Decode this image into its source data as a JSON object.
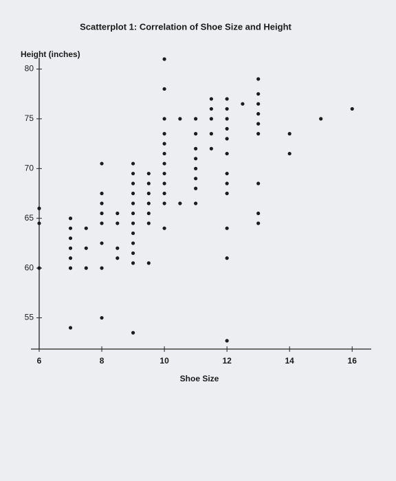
{
  "chart_data": {
    "type": "scatter",
    "title": "Scatterplot 1: Correlation of Shoe Size and Height",
    "y_label": "Height (inches)",
    "x_label": "Shoe Size",
    "color": "#1c1c1c",
    "xlim": [
      6,
      16.5
    ],
    "xticks": [
      6,
      8,
      10,
      12,
      14,
      16
    ],
    "ylim": [
      52,
      81
    ],
    "yticks": [
      55,
      60,
      65,
      70,
      75,
      80
    ],
    "x": [
      6,
      6,
      6,
      7,
      7,
      7,
      7,
      7,
      7,
      7,
      7.5,
      7.5,
      7.5,
      8,
      8,
      8,
      8,
      8,
      8,
      8,
      8,
      8.5,
      8.5,
      8.5,
      8.5,
      9,
      9,
      9,
      9,
      9,
      9,
      9,
      9,
      9,
      9,
      9,
      9,
      9.5,
      9.5,
      9.5,
      9.5,
      9.5,
      9.5,
      9.5,
      10,
      10,
      10,
      10,
      10,
      10,
      10,
      10,
      10,
      10,
      10,
      10,
      10.5,
      10.5,
      11,
      11,
      11,
      11,
      11,
      11,
      11,
      11,
      11.5,
      11.5,
      11.5,
      11.5,
      11.5,
      12,
      12,
      12,
      12,
      12,
      12,
      12,
      12,
      12,
      12,
      12,
      12,
      12.5,
      13,
      13,
      13,
      13,
      13,
      13,
      13,
      13,
      13,
      14,
      14,
      15,
      16
    ],
    "y": [
      66,
      64.5,
      60,
      65,
      64,
      63,
      62,
      61,
      60,
      54,
      64,
      62,
      60,
      70.5,
      67.5,
      66.5,
      65.5,
      64.5,
      62.5,
      60,
      55,
      65.5,
      64.5,
      62,
      61,
      70.5,
      69.5,
      68.5,
      67.5,
      66.5,
      65.5,
      64.5,
      63.5,
      62.5,
      61.5,
      60.5,
      53.5,
      69.5,
      68.5,
      67.5,
      66.5,
      65.5,
      64.5,
      60.5,
      81,
      78,
      75,
      73.5,
      72.5,
      71.5,
      70.5,
      69.5,
      68.5,
      67.5,
      66.5,
      64,
      75,
      66.5,
      75,
      73.5,
      72,
      71,
      70,
      69,
      68,
      66.5,
      77,
      76,
      75,
      73.5,
      72,
      77,
      76,
      75,
      74,
      73,
      71.5,
      69.5,
      68.5,
      67.5,
      64,
      61,
      52.7,
      76.5,
      79,
      77.5,
      76.5,
      75.5,
      74.5,
      73.5,
      68.5,
      65.5,
      64.5,
      73.5,
      71.5,
      75,
      76
    ]
  }
}
